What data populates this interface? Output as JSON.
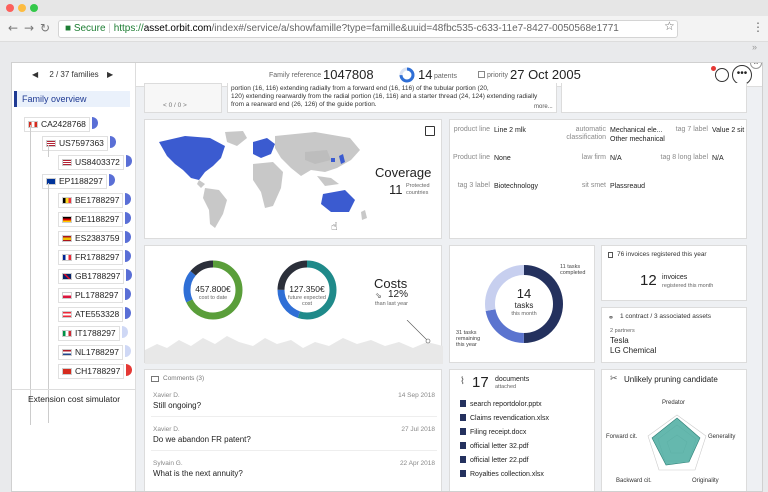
{
  "browser": {
    "secure_label": "Secure",
    "url_scheme": "https://",
    "url_host": "asset.orbit.com",
    "url_path": "/index#/service/a/showfamille?type=famille&uuid=48fbc535-c633-11e7-8427-0050568e1771"
  },
  "sidebar": {
    "nav": {
      "text": "2 / 37 families",
      "prev": "◀",
      "next": "▶"
    },
    "family_overview": "Family overview",
    "tree": [
      {
        "label": "CA2428768",
        "flag": "ca",
        "level": 0
      },
      {
        "label": "US7597363",
        "flag": "us",
        "level": 1
      },
      {
        "label": "US8403372",
        "flag": "us",
        "level": 2
      },
      {
        "label": "EP1188297",
        "flag": "eu",
        "level": 1
      },
      {
        "label": "BE1788297",
        "flag": "be",
        "level": 2
      },
      {
        "label": "DE1188297",
        "flag": "de",
        "level": 2
      },
      {
        "label": "ES2383759",
        "flag": "es",
        "level": 2
      },
      {
        "label": "FR1788297",
        "flag": "fr",
        "level": 2
      },
      {
        "label": "GB1788297",
        "flag": "gb",
        "level": 2
      },
      {
        "label": "PL1788297",
        "flag": "pl",
        "level": 2
      },
      {
        "label": "ATE553328",
        "flag": "at",
        "level": 2
      },
      {
        "label": "IT1788297",
        "flag": "it",
        "level": 2
      },
      {
        "label": "NL1788297",
        "flag": "nl",
        "level": 2
      },
      {
        "label": "CH1788297",
        "flag": "ch",
        "level": 2
      }
    ],
    "extension_simulator": "Extension cost simulator"
  },
  "header": {
    "family_ref_label": "Family reference",
    "family_ref": "1047808",
    "patents_count": "14",
    "patents_label": "patents",
    "priority_label": "priority",
    "priority_date": "27 Oct 2005"
  },
  "abstract": {
    "pager": "< 0 / 0 >",
    "lines": [
      "portion (16, 116) extending radially from a forward end (16, 116) of the tubular portion (20,",
      "120) extending rearwardly from the radial portion (16, 116) and a starter thread (24, 124) extending radially",
      "from a rearward end (26, 126) of the guide portion."
    ],
    "more": "more..."
  },
  "coverage": {
    "title": "Coverage",
    "count": "11",
    "sub1": "Protected",
    "sub2": "countries"
  },
  "tags": {
    "rows": [
      [
        {
          "label": "product line",
          "value": "Line 2 mlk"
        },
        {
          "label": "automatic classification",
          "value": "Mechanical ele...\nOther mechanical"
        },
        {
          "label": "tag 7 label",
          "value": "Value 2 sit"
        }
      ],
      [
        {
          "label": "Product line",
          "value": "None"
        },
        {
          "label": "law firm",
          "value": "N/A"
        },
        {
          "label": "tag 8 long label",
          "value": "N/A"
        }
      ],
      [
        {
          "label": "tag 3 label",
          "value": "Biotechnology"
        },
        {
          "label": "sit smet",
          "value": "Plassreaud"
        },
        {
          "label": "",
          "value": ""
        }
      ]
    ]
  },
  "costs": {
    "title": "Costs",
    "donut1_value": "457.800€",
    "donut1_label": "cost to date",
    "donut2_value": "127.350€",
    "donut2_label1": "future expected",
    "donut2_label2": "cost",
    "percent": "12%",
    "percent_label": "than last year",
    "donut1_segments": [
      0.68,
      0.18,
      0.14
    ],
    "donut2_segments": [
      0.55,
      0.2,
      0.25
    ]
  },
  "tasks": {
    "count": "14",
    "label": "tasks",
    "sub": "this month",
    "completed_label1": "11 tasks",
    "completed_label2": "completed",
    "remaining_label1": "31 tasks",
    "remaining_label2": "remaining",
    "remaining_label3": "this year",
    "segments": [
      0.5,
      0.22,
      0.28
    ]
  },
  "invoices": {
    "header": "76 invoices registered this year",
    "count": "12",
    "label": "invoices",
    "sub": "registered this month"
  },
  "contracts": {
    "header": "1 contract / 3 associated assets",
    "partners_label": "2 partners",
    "partners": [
      "Tesla",
      "LG Chemical"
    ]
  },
  "comments": {
    "title": "Comments (3)",
    "items": [
      {
        "author": "Xavier D.",
        "date": "14 Sep 2018",
        "text": "Still ongoing?"
      },
      {
        "author": "Xavier D.",
        "date": "27 Jul 2018",
        "text": "Do we abandon FR patent?"
      },
      {
        "author": "Sylvain G.",
        "date": "22 Apr 2018",
        "text": "What is the next annuity?"
      }
    ]
  },
  "documents": {
    "count": "17",
    "label1": "documents",
    "label2": "attached",
    "items": [
      "search reportdolor.pptx",
      "Claims revendication.xlsx",
      "Filing receipt.docx",
      "official letter 32.pdf",
      "official letter 22.pdf",
      "Royalties collection.xlsx"
    ]
  },
  "pruning": {
    "title": "Unlikely pruning candidate",
    "axes": [
      "Predator",
      "Generality",
      "Originality",
      "Backward cit.",
      "Forward cit."
    ]
  },
  "colors": {
    "navy": "#24315e",
    "blue": "#2f6fd6",
    "green": "#5a9e3a",
    "teal": "#1f8a8a",
    "radar": "#4aaba0"
  }
}
